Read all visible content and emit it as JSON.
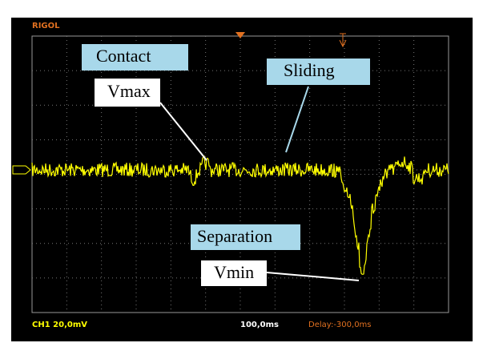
{
  "header": {
    "brand": "RIGOL"
  },
  "annotations": {
    "contact": "Contact",
    "sliding": "Sliding",
    "vmax": "Vmax",
    "separation": "Separation",
    "vmin": "Vmin"
  },
  "status": {
    "channel": "CH1 20,0mV",
    "timebase": "100,0ms",
    "delay": "Delay:-300,0ms"
  }
}
